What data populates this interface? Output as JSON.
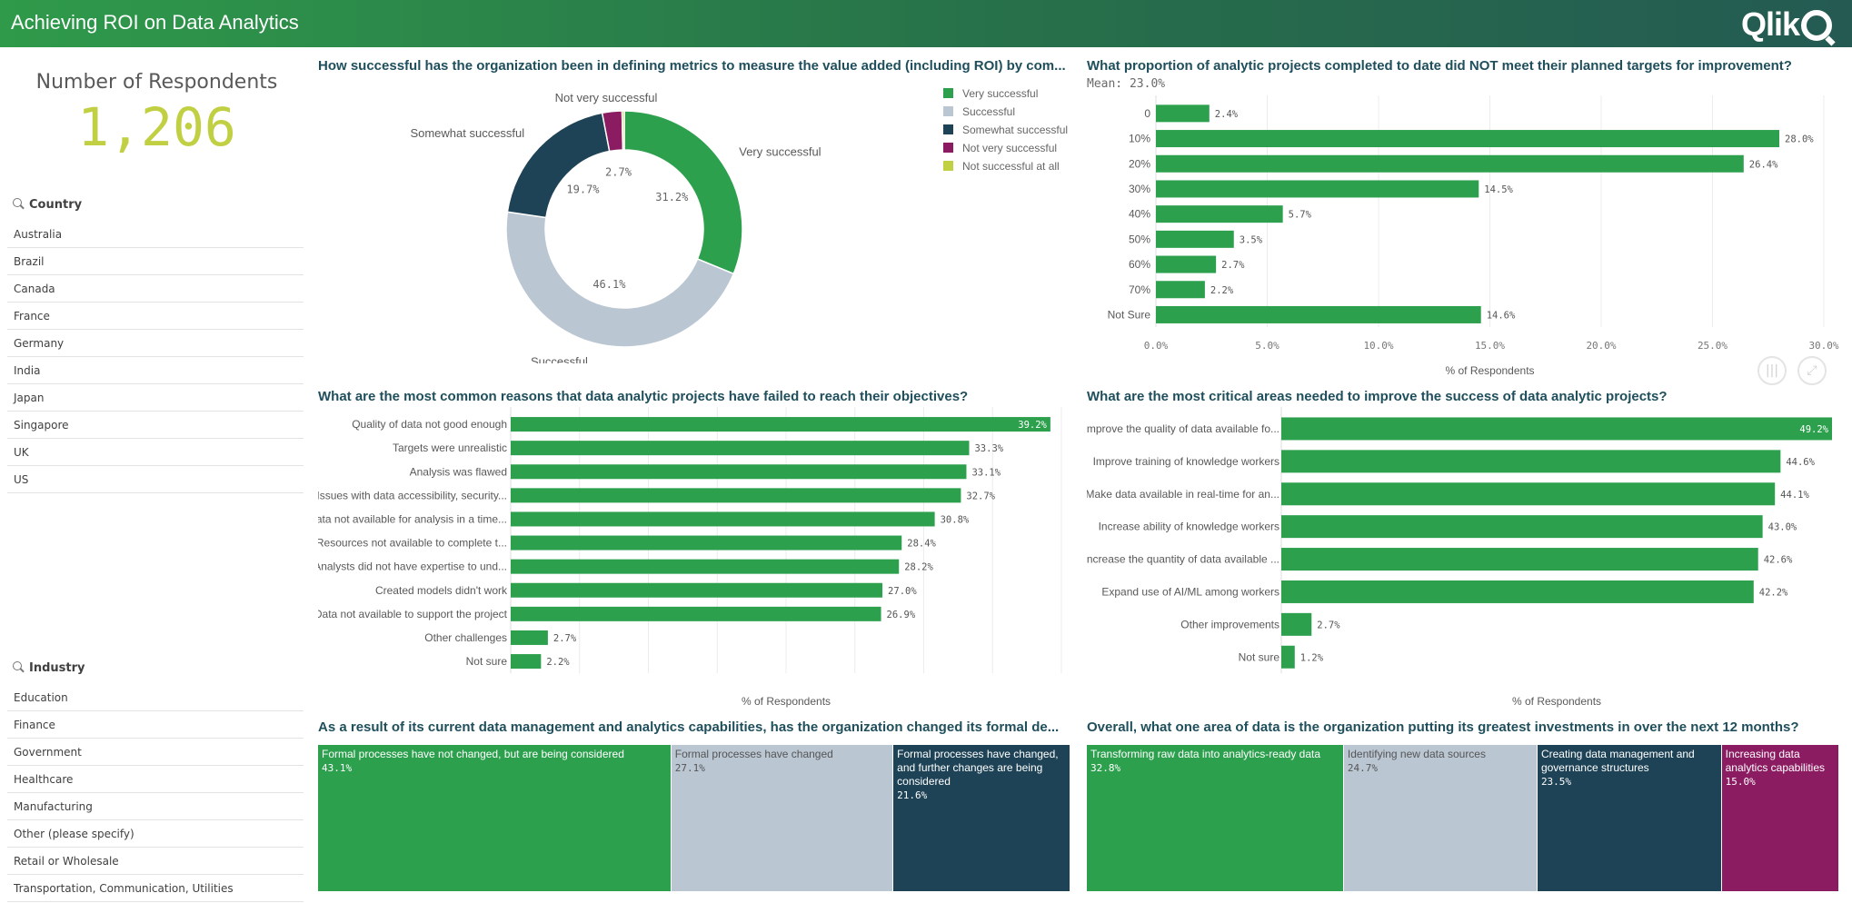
{
  "app": {
    "title": "Achieving ROI on Data Analytics",
    "logo": "Qlik"
  },
  "colors": {
    "green": "#2da04e",
    "light": "#bac6d2",
    "navy": "#1e4356",
    "purple": "#8b1c62",
    "lime": "#c1cf43"
  },
  "kpi": {
    "label": "Number of Respondents",
    "value": "1,206"
  },
  "filters": {
    "country": {
      "title": "Country",
      "items": [
        "Australia",
        "Brazil",
        "Canada",
        "France",
        "Germany",
        "India",
        "Japan",
        "Singapore",
        "UK",
        "US"
      ]
    },
    "industry": {
      "title": "Industry",
      "items": [
        "Education",
        "Finance",
        "Government",
        "Healthcare",
        "Manufacturing",
        "Other (please specify)",
        "Retail or Wholesale",
        "Transportation, Communication, Utilities"
      ]
    }
  },
  "panels": {
    "p1": {
      "title": "How successful has the organization been in defining metrics to measure the value added (including ROI) by com..."
    },
    "p2": {
      "title": "What proportion of analytic projects completed to date did NOT meet their planned targets for improvement?",
      "subtitle": "Mean: 23.0%",
      "xlabel": "% of Respondents"
    },
    "p3": {
      "title": "What are the most common reasons that data analytic projects have failed to reach their objectives?",
      "xlabel": "% of Respondents"
    },
    "p4": {
      "title": "What are the most critical areas needed to improve the success of data analytic projects?",
      "xlabel": "% of Respondents"
    },
    "p5": {
      "title": "As a result of its current data management and analytics capabilities, has the organization changed its formal de..."
    },
    "p6": {
      "title": "Overall, what one area of data is the organization putting its greatest investments in over the next 12 months?"
    }
  },
  "chart_data": [
    {
      "id": "donut",
      "type": "pie",
      "title": "How successful has the organization been in defining metrics to measure the value added (including ROI) by com...",
      "categories": [
        "Very successful",
        "Successful",
        "Somewhat successful",
        "Not very successful",
        "Not successful at all"
      ],
      "values": [
        31.2,
        46.1,
        19.7,
        2.7,
        0.3
      ],
      "labels": [
        "31.2%",
        "46.1%",
        "19.7%",
        "2.7%",
        ""
      ],
      "colors": [
        "#2da04e",
        "#bac6d2",
        "#1e4356",
        "#8b1c62",
        "#c1cf43"
      ],
      "outside_labels": [
        "Very successful",
        "Successful",
        "Somewhat successful",
        "Not very successful",
        ""
      ],
      "legend": "top-right"
    },
    {
      "id": "targets",
      "type": "bar",
      "orientation": "horizontal",
      "title": "What proportion of analytic projects completed to date did NOT meet their planned targets for improvement?",
      "subtitle": "Mean: 23.0%",
      "categories": [
        "0",
        "10%",
        "20%",
        "30%",
        "40%",
        "50%",
        "60%",
        "70%",
        "Not Sure"
      ],
      "values": [
        2.4,
        28.0,
        26.4,
        14.5,
        5.7,
        3.5,
        2.7,
        2.2,
        14.6
      ],
      "labels": [
        "2.4%",
        "28.0%",
        "26.4%",
        "14.5%",
        "5.7%",
        "3.5%",
        "2.7%",
        "2.2%",
        "14.6%"
      ],
      "xlim": [
        0,
        30
      ],
      "ticks": [
        "0.0%",
        "5.0%",
        "10.0%",
        "15.0%",
        "20.0%",
        "25.0%",
        "30.0%"
      ],
      "xlabel": "% of Respondents"
    },
    {
      "id": "reasons",
      "type": "bar",
      "orientation": "horizontal",
      "title": "What are the most common reasons that data analytic projects have failed to reach their objectives?",
      "categories": [
        "Quality of data not good enough",
        "Targets were unrealistic",
        "Analysis was flawed",
        "Issues with data accessibility, security...",
        "Data not available for analysis in a time...",
        "Resources not available to complete t...",
        "Analysts did not have expertise to und...",
        "Created models didn't work",
        "Data not available to support the project",
        "Other challenges",
        "Not sure"
      ],
      "values": [
        39.2,
        33.3,
        33.1,
        32.7,
        30.8,
        28.4,
        28.2,
        27.0,
        26.9,
        2.7,
        2.2
      ],
      "labels": [
        "39.2%",
        "33.3%",
        "33.1%",
        "32.7%",
        "30.8%",
        "28.4%",
        "28.2%",
        "27.0%",
        "26.9%",
        "2.7%",
        "2.2%"
      ],
      "xlim": [
        0,
        40
      ],
      "xlabel": "% of Respondents"
    },
    {
      "id": "areas",
      "type": "bar",
      "orientation": "horizontal",
      "title": "What are the most critical areas needed to improve the success of data analytic projects?",
      "categories": [
        "Improve the quality of data available fo...",
        "Improve training of knowledge workers",
        "Make data available in real-time for an...",
        "Increase ability of knowledge workers",
        "Increase the quantity of data available ...",
        "Expand use of AI/ML among workers",
        "Other improvements",
        "Not sure"
      ],
      "values": [
        49.2,
        44.6,
        44.1,
        43.0,
        42.6,
        42.2,
        2.7,
        1.2
      ],
      "labels": [
        "49.2%",
        "44.6%",
        "44.1%",
        "43.0%",
        "42.6%",
        "42.2%",
        "2.7%",
        "1.2%"
      ],
      "xlim": [
        0,
        49.2
      ],
      "xlabel": "% of Respondents"
    },
    {
      "id": "processes",
      "type": "treemap",
      "title": "As a result of its current data management and analytics capabilities, has the organization changed its formal de...",
      "categories": [
        "Formal processes have not changed, but are being considered",
        "Formal processes have changed",
        "Formal processes have changed, and further changes are being considered"
      ],
      "values": [
        43.1,
        27.1,
        21.6
      ],
      "labels": [
        "43.1%",
        "27.1%",
        "21.6%"
      ],
      "colors": [
        "#2da04e",
        "#bac6d2",
        "#1e4356"
      ]
    },
    {
      "id": "investments",
      "type": "treemap",
      "title": "Overall, what one area of data is the organization putting its greatest investments in over the next 12 months?",
      "categories": [
        "Transforming raw data into analytics-ready data",
        "Identifying new data sources",
        "Creating data management and governance structures",
        "Increasing data analytics capabilities"
      ],
      "values": [
        32.8,
        24.7,
        23.5,
        15.0
      ],
      "labels": [
        "32.8%",
        "24.7%",
        "23.5%",
        "15.0%"
      ],
      "colors": [
        "#2da04e",
        "#bac6d2",
        "#1e4356",
        "#8b1c62"
      ]
    }
  ]
}
